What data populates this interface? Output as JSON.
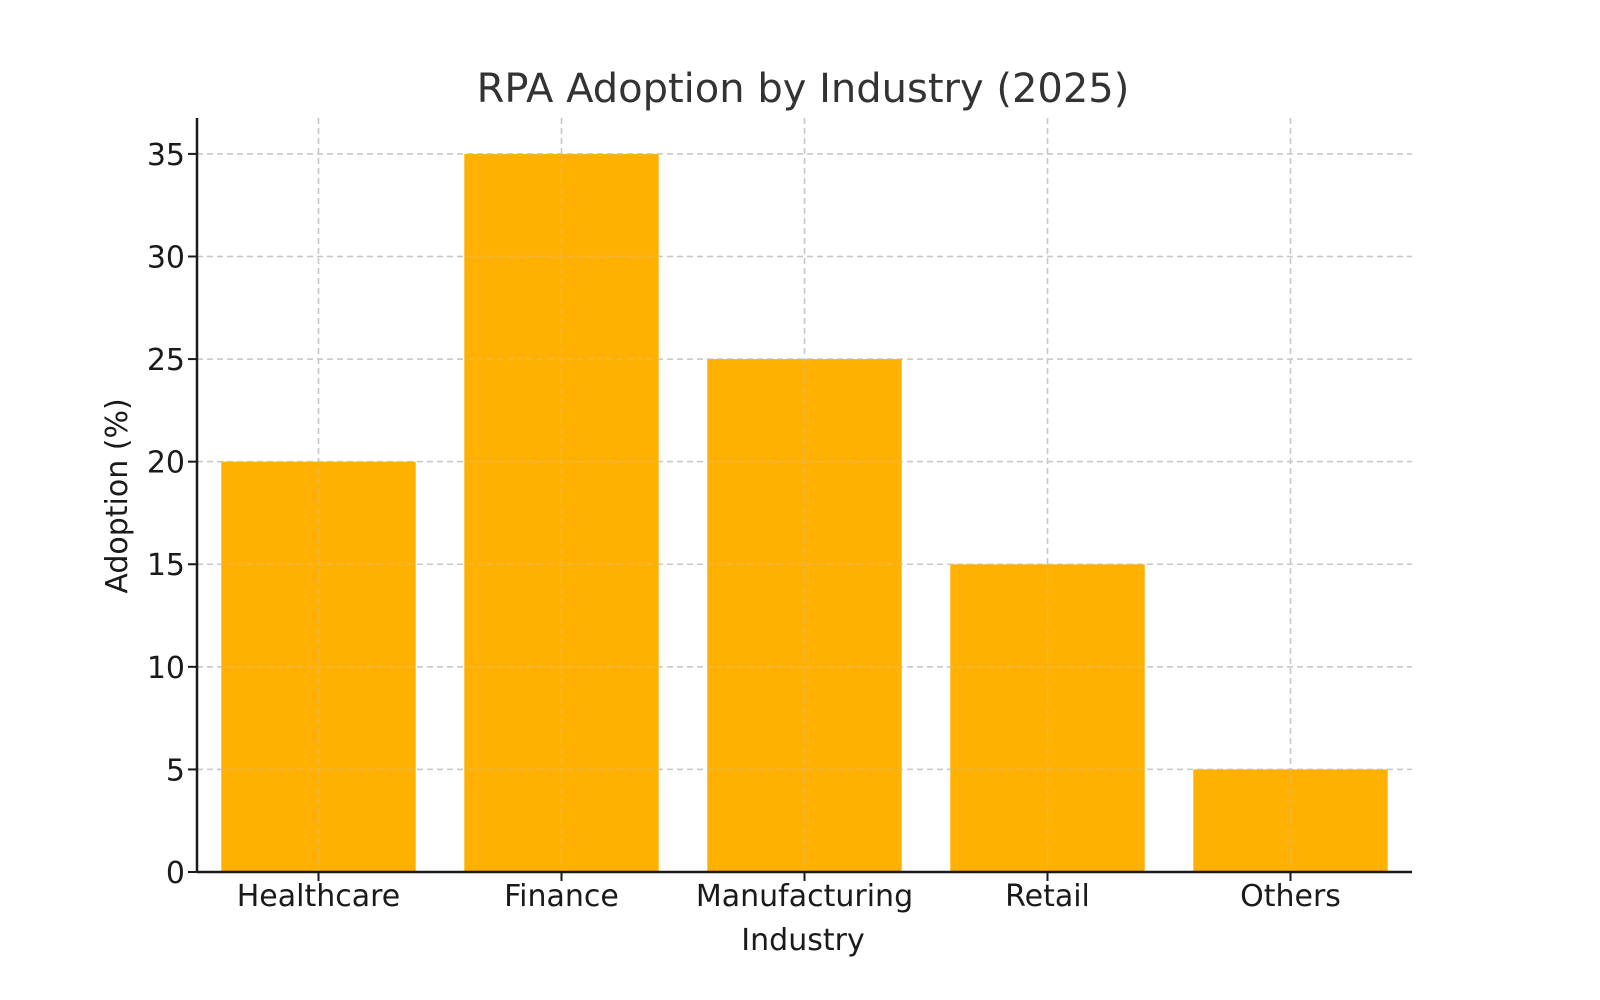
{
  "chart_data": {
    "type": "bar",
    "title": "RPA Adoption by Industry (2025)",
    "xlabel": "Industry",
    "ylabel": "Adoption (%)",
    "categories": [
      "Healthcare",
      "Finance",
      "Manufacturing",
      "Retail",
      "Others"
    ],
    "values": [
      20,
      35,
      25,
      15,
      5
    ],
    "ylim": [
      0,
      36.75
    ],
    "yticks": [
      0,
      5,
      10,
      15,
      20,
      25,
      30,
      35
    ],
    "grid": true,
    "bar_color": "#FFB000"
  }
}
